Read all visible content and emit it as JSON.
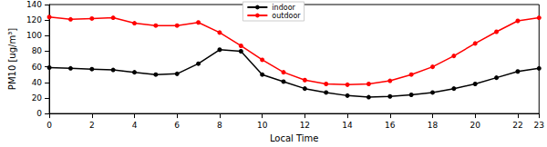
{
  "chart_data": {
    "type": "line",
    "x_label": "Local Time",
    "y_label": "PM10 [ug/m³]",
    "x": [
      0,
      1,
      2,
      3,
      4,
      5,
      6,
      7,
      8,
      9,
      10,
      11,
      12,
      13,
      14,
      15,
      16,
      17,
      18,
      19,
      20,
      21,
      22,
      23
    ],
    "series": [
      {
        "name": "indoor",
        "color": "#000000",
        "marker": "circle",
        "line_style": "solid",
        "values": [
          59,
          58,
          57,
          56,
          53,
          50,
          51,
          64,
          82,
          80,
          50,
          41,
          32,
          27,
          23,
          21,
          22,
          24,
          27,
          32,
          38,
          46,
          54,
          58
        ]
      },
      {
        "name": "outdoor",
        "color": "#ff0000",
        "marker": "circle",
        "line_style": "solid",
        "values": [
          124,
          121,
          122,
          123,
          116,
          113,
          113,
          117,
          104,
          87,
          69,
          53,
          43,
          38,
          37,
          38,
          42,
          50,
          60,
          74,
          90,
          105,
          119,
          123
        ]
      }
    ],
    "xlim": [
      0,
      23
    ],
    "xticks": [
      0,
      2,
      4,
      6,
      8,
      10,
      12,
      14,
      16,
      18,
      20,
      22
    ],
    "ylim": [
      0,
      140
    ],
    "yticks": [
      0,
      20,
      40,
      60,
      80,
      100,
      120,
      140
    ],
    "grid": false,
    "legend": "upper center"
  }
}
